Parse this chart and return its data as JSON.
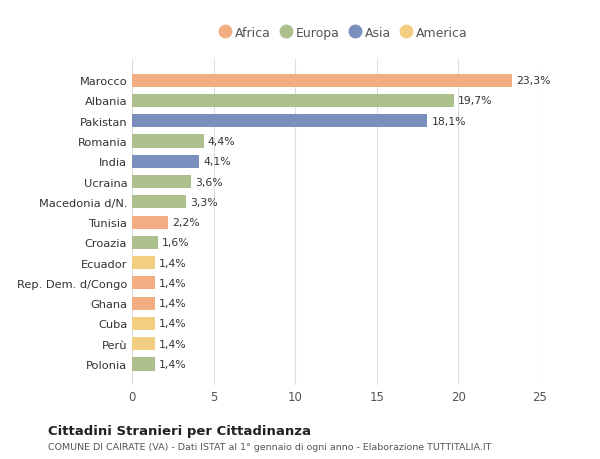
{
  "countries": [
    "Marocco",
    "Albania",
    "Pakistan",
    "Romania",
    "India",
    "Ucraina",
    "Macedonia d/N.",
    "Tunisia",
    "Croazia",
    "Ecuador",
    "Rep. Dem. d/Congo",
    "Ghana",
    "Cuba",
    "Perù",
    "Polonia"
  ],
  "values": [
    23.3,
    19.7,
    18.1,
    4.4,
    4.1,
    3.6,
    3.3,
    2.2,
    1.6,
    1.4,
    1.4,
    1.4,
    1.4,
    1.4,
    1.4
  ],
  "labels": [
    "23,3%",
    "19,7%",
    "18,1%",
    "4,4%",
    "4,1%",
    "3,6%",
    "3,3%",
    "2,2%",
    "1,6%",
    "1,4%",
    "1,4%",
    "1,4%",
    "1,4%",
    "1,4%",
    "1,4%"
  ],
  "continents": [
    "Africa",
    "Europa",
    "Asia",
    "Europa",
    "Asia",
    "Europa",
    "Europa",
    "Africa",
    "Europa",
    "America",
    "Africa",
    "Africa",
    "America",
    "America",
    "Europa"
  ],
  "colors": {
    "Africa": "#F2AE82",
    "Europa": "#ADBF8C",
    "Asia": "#7B8FBF",
    "America": "#F2CE82"
  },
  "legend_order": [
    "Africa",
    "Europa",
    "Asia",
    "America"
  ],
  "title1": "Cittadini Stranieri per Cittadinanza",
  "title2": "COMUNE DI CAIRATE (VA) - Dati ISTAT al 1° gennaio di ogni anno - Elaborazione TUTTITALIA.IT",
  "xlim": [
    0,
    25
  ],
  "xticks": [
    0,
    5,
    10,
    15,
    20,
    25
  ],
  "background_color": "#ffffff",
  "grid_color": "#dddddd",
  "bar_height": 0.65
}
